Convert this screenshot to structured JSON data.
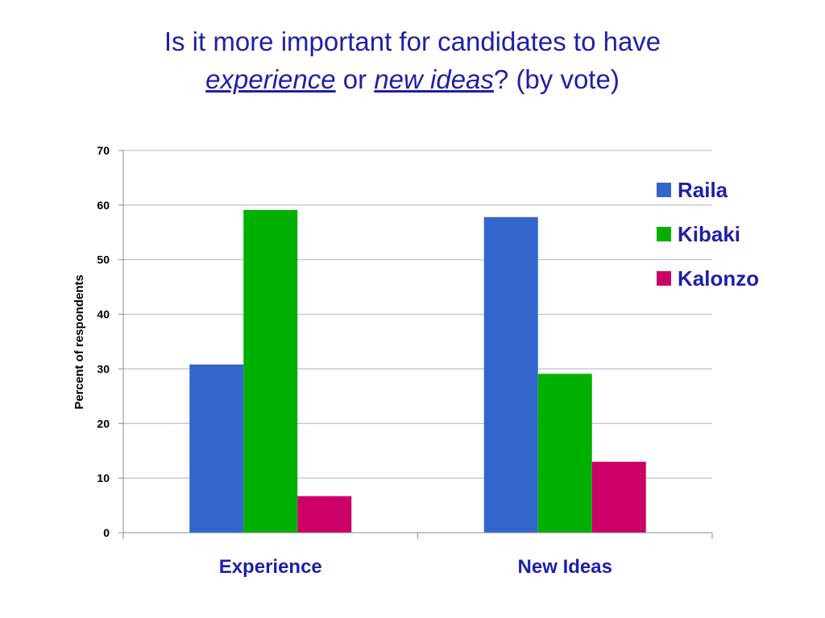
{
  "title": {
    "part1": "Is it more important for candidates to have",
    "em1": "experience",
    "mid": " or ",
    "em2": "new ideas",
    "end": "? (by vote)"
  },
  "chart_data": {
    "type": "bar",
    "categories": [
      "Experience",
      "New Ideas"
    ],
    "series": [
      {
        "name": "Raila",
        "color": "#3366cc",
        "values": [
          30.8,
          57.8
        ]
      },
      {
        "name": "Kibaki",
        "color": "#00b000",
        "values": [
          59.1,
          29.1
        ]
      },
      {
        "name": "Kalonzo",
        "color": "#cc0066",
        "values": [
          6.7,
          13.0
        ]
      }
    ],
    "xlabel": "",
    "ylabel": "Percent of respondents",
    "ylim": [
      0,
      70
    ],
    "yticks": [
      0,
      10,
      20,
      30,
      40,
      50,
      60,
      70
    ],
    "grid": true,
    "legend": "right"
  }
}
